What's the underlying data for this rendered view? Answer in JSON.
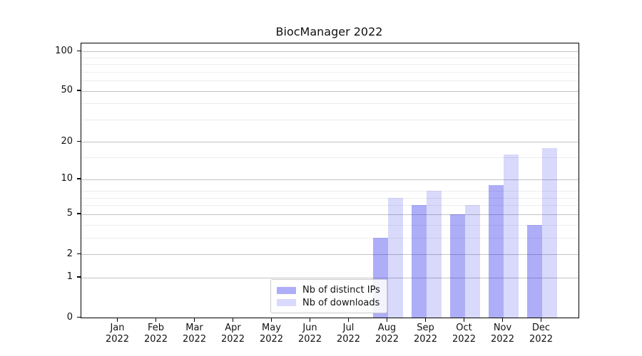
{
  "chart_data": {
    "type": "bar",
    "title": "BiocManager 2022",
    "categories": [
      "Jan",
      "Feb",
      "Mar",
      "Apr",
      "May",
      "Jun",
      "Jul",
      "Aug",
      "Sep",
      "Oct",
      "Nov",
      "Dec"
    ],
    "xtick_year": "2022",
    "series": [
      {
        "name": "Nb of distinct IPs",
        "values": [
          0,
          0,
          0,
          0,
          0,
          0,
          0,
          3,
          6,
          5,
          9,
          4
        ],
        "fill": "rgba(20,20,235,0.35)",
        "legend_color": "#adadf8"
      },
      {
        "name": "Nb of downloads",
        "values": [
          0,
          0,
          0,
          0,
          0,
          0,
          0,
          7,
          8,
          6,
          16,
          18
        ],
        "fill": "rgba(20,20,235,0.16)",
        "legend_color": "#d9d9fc"
      }
    ],
    "yscale": "log1p",
    "ylim": [
      0,
      115
    ],
    "yticks": [
      0,
      1,
      2,
      5,
      10,
      20,
      50,
      100
    ],
    "minor_yticks": [
      3,
      4,
      6,
      7,
      8,
      15,
      30,
      40,
      60,
      70,
      80,
      90
    ],
    "grid": {
      "major_color": "#c3c3c3",
      "minor_color": "#ededed"
    },
    "legend_position": "lower center",
    "colors": {
      "axis": "#000000",
      "text": "#111111",
      "background": "#ffffff"
    }
  }
}
